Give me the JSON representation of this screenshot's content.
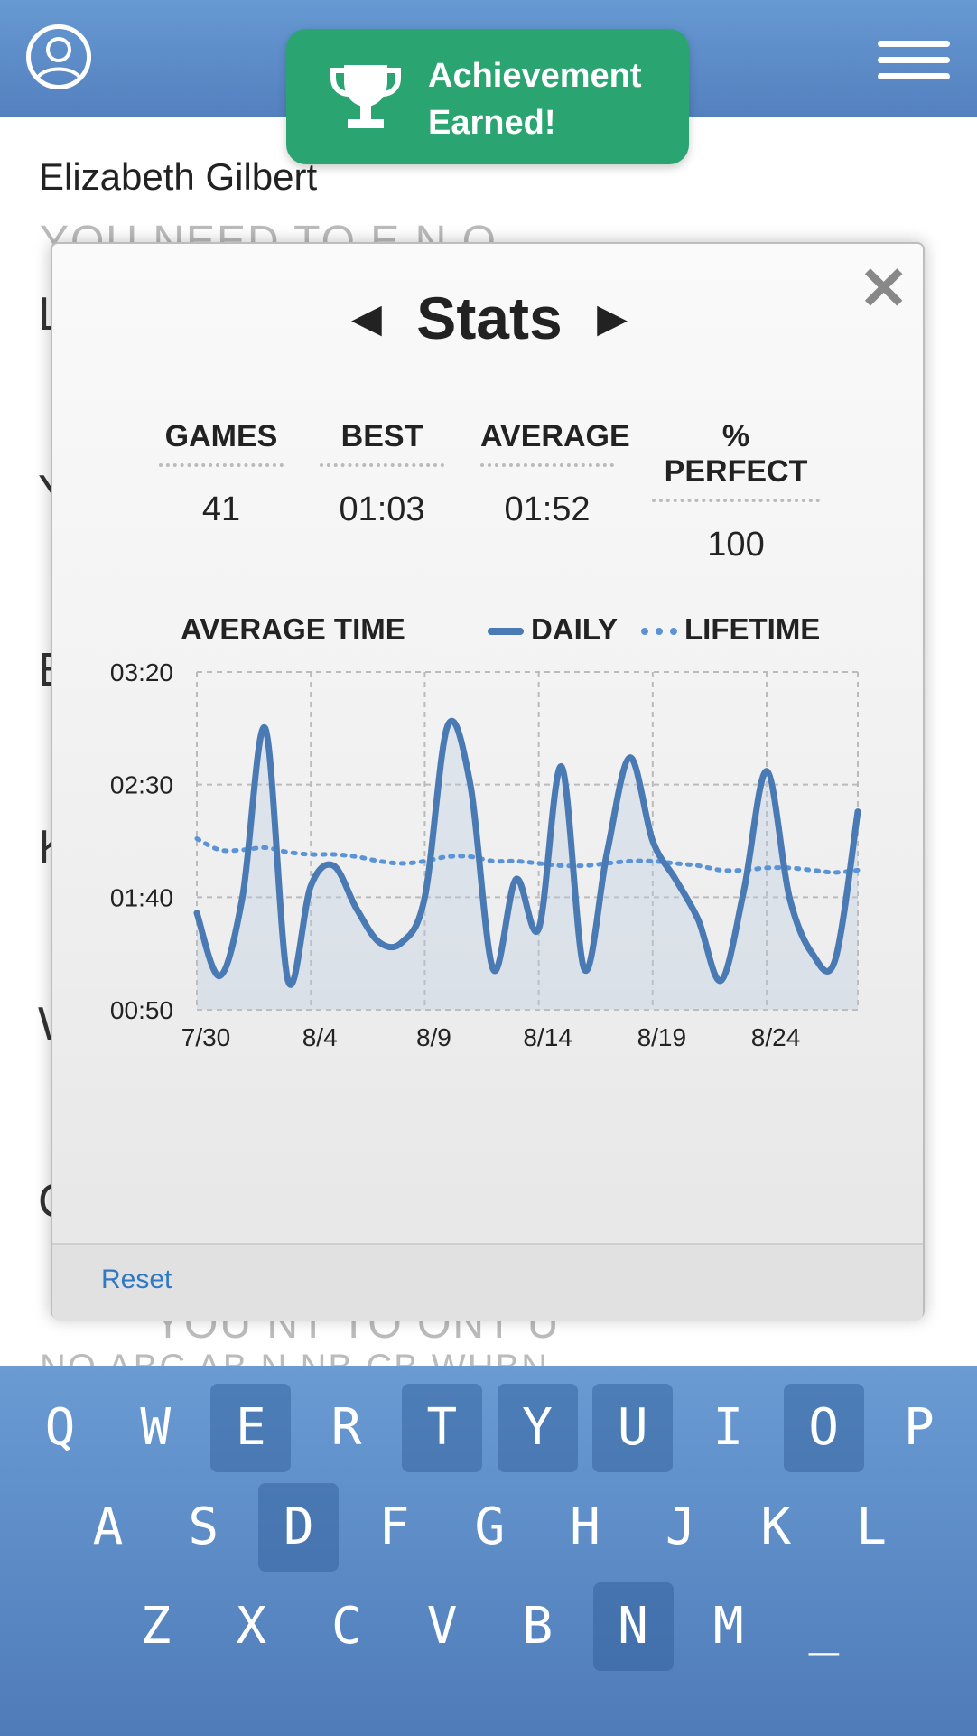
{
  "header": {
    "avatar_icon": "user-avatar-icon",
    "menu_icon": "hamburger-menu-icon",
    "achievement": {
      "icon": "trophy-icon",
      "text": "Achievement\nEarned!",
      "color": "#2aa572"
    }
  },
  "puzzle": {
    "author": "Elizabeth Gilbert",
    "line1": "YOU NEED TO  E  N  O",
    "line_bottom": "YOU     NT  TO   ONT  U",
    "line_bottom2": "NO  ABC  AB N   NB   CB  WHBN"
  },
  "modal": {
    "title": "Stats",
    "prev_icon": "left-triangle-icon",
    "next_icon": "right-triangle-icon",
    "close_icon": "close-x-icon",
    "stats": [
      {
        "label": "GAMES",
        "value": "41"
      },
      {
        "label": "BEST",
        "value": "01:03"
      },
      {
        "label": "AVERAGE",
        "value": "01:52"
      },
      {
        "label": "% PERFECT",
        "value": "100"
      }
    ],
    "reset_label": "Reset"
  },
  "chart_data": {
    "type": "line",
    "title": "AVERAGE TIME",
    "legend": [
      {
        "name": "DAILY",
        "style": "solid",
        "color": "#4a7ab4"
      },
      {
        "name": "LIFETIME",
        "style": "dotted",
        "color": "#5a93d6"
      }
    ],
    "y_ticks": [
      "03:20",
      "02:30",
      "01:40",
      "00:50"
    ],
    "x_ticks": [
      "7/30",
      "8/4",
      "8/9",
      "8/14",
      "8/19",
      "8/24"
    ],
    "ylim": [
      50,
      200
    ],
    "grid": true,
    "series": [
      {
        "name": "DAILY",
        "x": [
          "7/30",
          "7/31",
          "8/1",
          "8/2",
          "8/3",
          "8/4",
          "8/5",
          "8/6",
          "8/7",
          "8/8",
          "8/9",
          "8/10",
          "8/11",
          "8/12",
          "8/13",
          "8/14",
          "8/15",
          "8/16",
          "8/17",
          "8/18",
          "8/19",
          "8/20",
          "8/21",
          "8/22",
          "8/23",
          "8/24",
          "8/25",
          "8/26",
          "8/27",
          "8/28"
        ],
        "values": [
          93,
          65,
          100,
          175,
          63,
          105,
          114,
          95,
          80,
          80,
          100,
          176,
          150,
          68,
          108,
          86,
          158,
          68,
          120,
          162,
          125,
          108,
          90,
          63,
          103,
          156,
          100,
          75,
          72,
          138
        ]
      },
      {
        "name": "LIFETIME",
        "x": [
          "7/30",
          "7/31",
          "8/1",
          "8/2",
          "8/3",
          "8/4",
          "8/5",
          "8/6",
          "8/7",
          "8/8",
          "8/9",
          "8/10",
          "8/11",
          "8/12",
          "8/13",
          "8/14",
          "8/15",
          "8/16",
          "8/17",
          "8/18",
          "8/19",
          "8/20",
          "8/21",
          "8/22",
          "8/23",
          "8/24",
          "8/25",
          "8/26",
          "8/27",
          "8/28"
        ],
        "values": [
          126,
          121,
          121,
          122,
          120,
          119,
          119,
          118,
          116,
          115,
          116,
          118,
          118,
          116,
          116,
          115,
          114,
          114,
          115,
          116,
          116,
          115,
          114,
          112,
          112,
          113,
          113,
          112,
          111,
          112
        ]
      }
    ]
  },
  "keyboard": {
    "row1": [
      "Q",
      "W",
      "E",
      "R",
      "T",
      "Y",
      "U",
      "I",
      "O",
      "P"
    ],
    "row2": [
      "A",
      "S",
      "D",
      "F",
      "G",
      "H",
      "J",
      "K",
      "L"
    ],
    "row3": [
      "Z",
      "X",
      "C",
      "V",
      "B",
      "N",
      "M",
      "_"
    ],
    "used_keys": [
      "E",
      "T",
      "Y",
      "U",
      "O",
      "D",
      "N"
    ]
  }
}
